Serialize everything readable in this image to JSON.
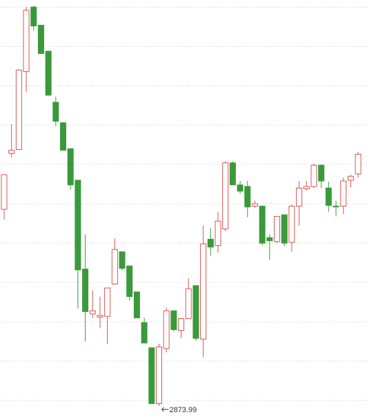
{
  "chart_data": {
    "type": "candlestick",
    "up_color": "#d9534f",
    "down_color": "#3a9a3a",
    "ylim": [
      2860,
      3390
    ],
    "yticks": [
      2881,
      2931,
      2981,
      3031,
      3081,
      3131,
      3181,
      3231,
      3281,
      3331,
      3381
    ],
    "grid": true,
    "annotation": "2873.99",
    "open": [
      3124,
      3195,
      3200,
      3299,
      3381,
      3358,
      3325,
      3260,
      3234,
      3201,
      3161,
      3048,
      2991,
      2987,
      2988,
      3029,
      3070,
      3052,
      3019,
      2980,
      2948,
      2877,
      2947,
      2995,
      2970,
      2985,
      3027,
      2959,
      3086,
      3078,
      3099,
      3183,
      3155,
      3153,
      3128,
      3128,
      3088,
      3083,
      3117,
      3082,
      3128,
      3150,
      3153,
      3180,
      3151,
      3128,
      3128,
      3161,
      3169
    ],
    "high": [
      3168,
      3232,
      3302,
      3381,
      3383,
      3358,
      3325,
      3267,
      3234,
      3201,
      3161,
      3092,
      3021,
      3013,
      3024,
      3087,
      3070,
      3052,
      3019,
      2986,
      2948,
      2953,
      2999,
      2995,
      2986,
      3036,
      3027,
      3103,
      3100,
      3121,
      3185,
      3185,
      3160,
      3160,
      3135,
      3128,
      3092,
      3115,
      3117,
      3130,
      3160,
      3160,
      3182,
      3181,
      3159,
      3135,
      3164,
      3168,
      3197
    ],
    "low": [
      3111,
      3190,
      3200,
      3273,
      3351,
      3322,
      3269,
      3230,
      3199,
      3149,
      2998,
      2956,
      2986,
      2973,
      2953,
      3028,
      3046,
      3008,
      2986,
      2954,
      2877,
      2873.99,
      2942,
      2969,
      2960,
      2985,
      2957,
      2936,
      3065,
      3069,
      3096,
      3155,
      3144,
      3114,
      3126,
      3078,
      3060,
      3081,
      3077,
      3070,
      3103,
      3148,
      3151,
      3151,
      3121,
      3115,
      3118,
      3152,
      3164
    ],
    "close": [
      3168,
      3199,
      3301,
      3377,
      3357,
      3322,
      3269,
      3236,
      3199,
      3155,
      3047,
      2994,
      2995,
      2989,
      3024,
      3073,
      3049,
      3013,
      2986,
      2954,
      2877,
      2949,
      2995,
      2971,
      2985,
      3023,
      2960,
      3080,
      3076,
      3109,
      3183,
      3155,
      3147,
      3127,
      3131,
      3081,
      3084,
      3115,
      3081,
      3128,
      3151,
      3153,
      3180,
      3160,
      3129,
      3127,
      3160,
      3166,
      3194
    ]
  }
}
